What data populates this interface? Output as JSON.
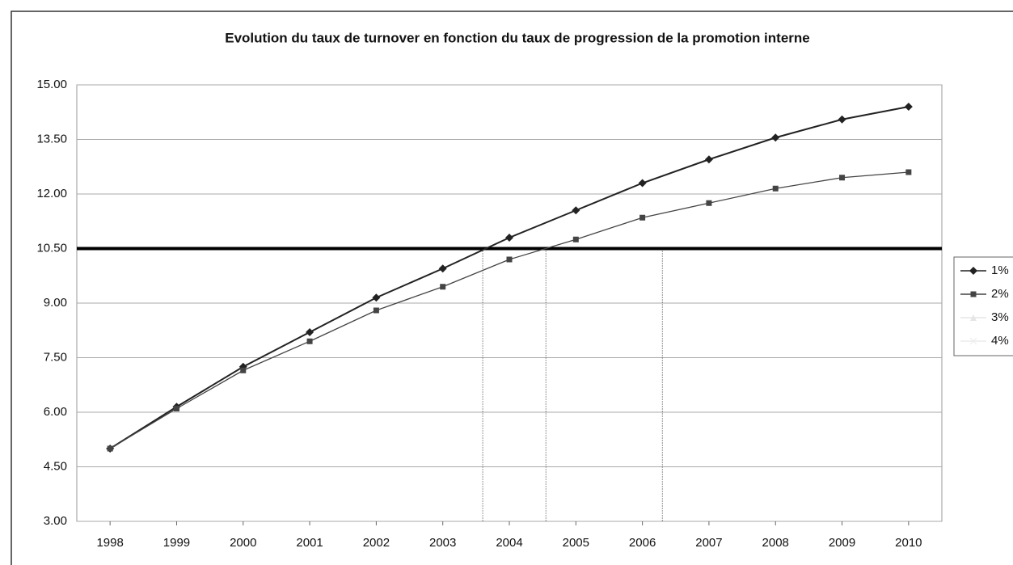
{
  "chart_data": {
    "type": "line",
    "title": "Evolution du taux de turnover en fonction du taux de progression de la promotion interne",
    "x": [
      1998,
      1999,
      2000,
      2001,
      2002,
      2003,
      2004,
      2005,
      2006,
      2007,
      2008,
      2009,
      2010
    ],
    "xlim": [
      1997.5,
      2010.5
    ],
    "xticks": [
      1998,
      1999,
      2000,
      2001,
      2002,
      2003,
      2004,
      2005,
      2006,
      2007,
      2008,
      2009,
      2010
    ],
    "ylim": [
      3,
      15
    ],
    "yticks": [
      {
        "value": 3,
        "label": "3.00"
      },
      {
        "value": 4.5,
        "label": "4.50"
      },
      {
        "value": 6,
        "label": "6.00"
      },
      {
        "value": 7.5,
        "label": "7.50"
      },
      {
        "value": 9,
        "label": "9.00"
      },
      {
        "value": 10.5,
        "label": "10.50"
      },
      {
        "value": 12,
        "label": "12.00"
      },
      {
        "value": 13.5,
        "label": "13.50"
      },
      {
        "value": 15,
        "label": "15.00"
      }
    ],
    "grid": true,
    "legend": "right",
    "hlines": [
      10.5
    ],
    "vlines": [
      2003.6,
      2004.55,
      2006.3
    ],
    "series": [
      {
        "name": "1%",
        "color": "#222222",
        "marker": "diamond",
        "values": [
          5.0,
          6.15,
          7.25,
          8.2,
          9.15,
          9.95,
          10.8,
          11.55,
          12.3,
          12.95,
          13.55,
          14.05,
          14.4
        ]
      },
      {
        "name": "2%",
        "color": "#444444",
        "marker": "square",
        "values": [
          5.0,
          6.1,
          7.15,
          7.95,
          8.8,
          9.45,
          10.2,
          10.75,
          11.35,
          11.75,
          12.15,
          12.45,
          12.6
        ]
      },
      {
        "name": "3%",
        "color": "#e6e6e6",
        "marker": "triangle",
        "values": [
          null,
          null,
          null,
          null,
          null,
          null,
          null,
          null,
          null,
          null,
          null,
          null,
          null
        ]
      },
      {
        "name": "4%",
        "color": "#ececec",
        "marker": "x",
        "values": [
          null,
          null,
          null,
          null,
          null,
          null,
          null,
          null,
          null,
          null,
          null,
          null,
          null
        ]
      }
    ]
  }
}
